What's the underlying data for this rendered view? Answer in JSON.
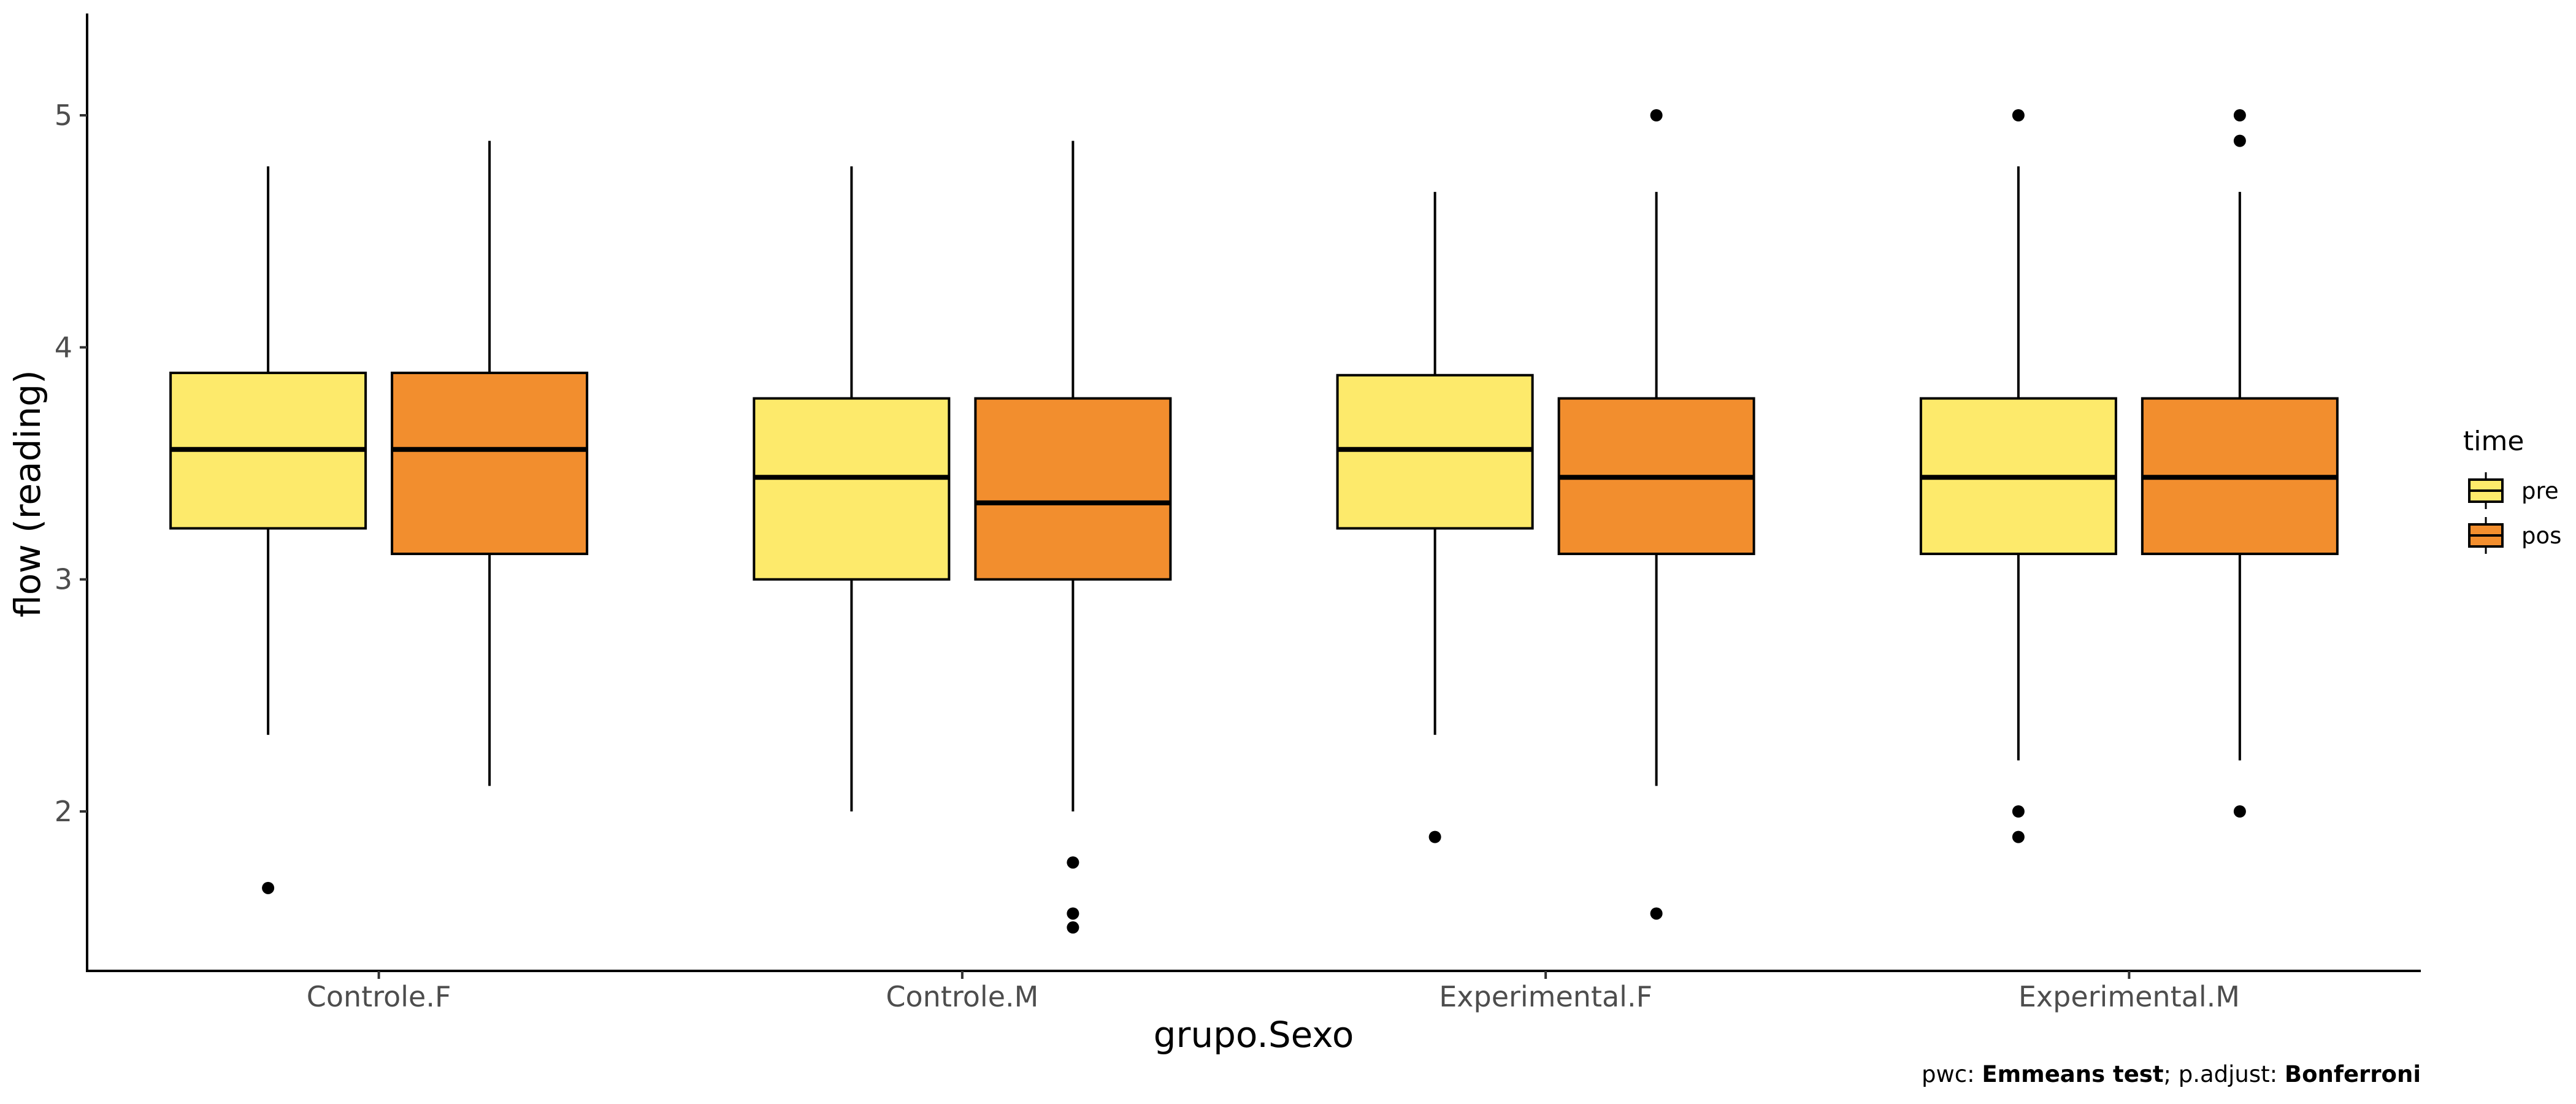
{
  "chart_data": {
    "type": "boxplot",
    "xlabel": "grupo.Sexo",
    "ylabel": "flow (reading)",
    "categories": [
      "Controle.F",
      "Controle.M",
      "Experimental.F",
      "Experimental.M"
    ],
    "ylim": [
      1.37,
      5.45
    ],
    "yticks": [
      2,
      3,
      4,
      5
    ],
    "grid": false,
    "legend": {
      "title": "time",
      "position": "right",
      "entries": [
        {
          "name": "pre",
          "color": "#FDEA6B"
        },
        {
          "name": "pos",
          "color": "#F28E2E"
        }
      ]
    },
    "series": [
      {
        "name": "pre",
        "color": "#FDEA6B",
        "boxes": [
          {
            "category": "Controle.F",
            "whisker_low": 2.33,
            "q1": 3.22,
            "median": 3.56,
            "q3": 3.89,
            "whisker_high": 4.78,
            "outliers": [
              1.67
            ]
          },
          {
            "category": "Controle.M",
            "whisker_low": 2.0,
            "q1": 3.0,
            "median": 3.44,
            "q3": 3.78,
            "whisker_high": 4.78,
            "outliers": []
          },
          {
            "category": "Experimental.F",
            "whisker_low": 2.33,
            "q1": 3.22,
            "median": 3.56,
            "q3": 3.88,
            "whisker_high": 4.67,
            "outliers": [
              1.89
            ]
          },
          {
            "category": "Experimental.M",
            "whisker_low": 2.22,
            "q1": 3.11,
            "median": 3.44,
            "q3": 3.78,
            "whisker_high": 4.78,
            "outliers": [
              5.0,
              2.0,
              1.89
            ]
          }
        ]
      },
      {
        "name": "pos",
        "color": "#F28E2E",
        "boxes": [
          {
            "category": "Controle.F",
            "whisker_low": 2.11,
            "q1": 3.11,
            "median": 3.56,
            "q3": 3.89,
            "whisker_high": 4.89,
            "outliers": []
          },
          {
            "category": "Controle.M",
            "whisker_low": 2.0,
            "q1": 3.0,
            "median": 3.33,
            "q3": 3.78,
            "whisker_high": 4.89,
            "outliers": [
              1.78,
              1.56,
              1.5
            ]
          },
          {
            "category": "Experimental.F",
            "whisker_low": 2.11,
            "q1": 3.11,
            "median": 3.44,
            "q3": 3.78,
            "whisker_high": 4.67,
            "outliers": [
              5.0,
              1.56
            ]
          },
          {
            "category": "Experimental.M",
            "whisker_low": 2.22,
            "q1": 3.11,
            "median": 3.44,
            "q3": 3.78,
            "whisker_high": 4.67,
            "outliers": [
              5.0,
              4.89,
              2.0
            ]
          }
        ]
      }
    ]
  },
  "caption": {
    "prefix": "pwc: ",
    "test": "Emmeans test",
    "middle": "; p.adjust: ",
    "method": "Bonferroni"
  }
}
